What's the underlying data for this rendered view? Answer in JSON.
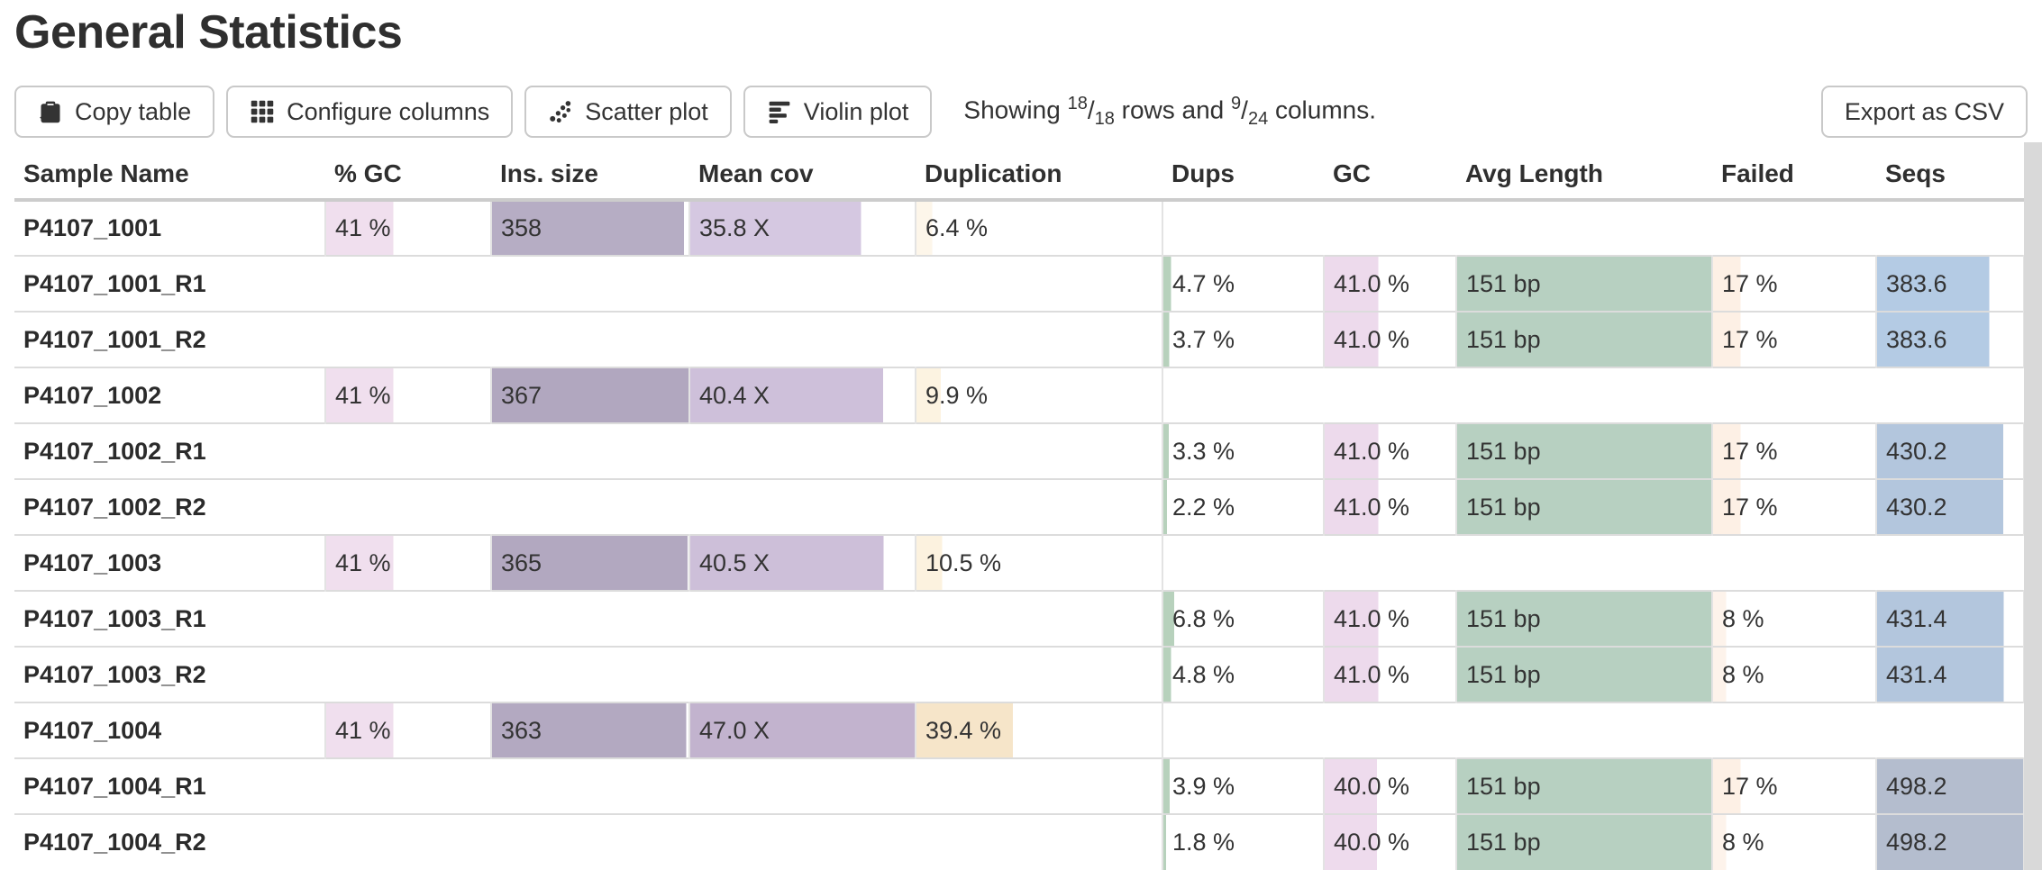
{
  "page": {
    "title": "General Statistics"
  },
  "toolbar": {
    "buttons": [
      {
        "label": "Copy table",
        "icon": "copy-icon"
      },
      {
        "label": "Configure columns",
        "icon": "grid-icon"
      },
      {
        "label": "Scatter plot",
        "icon": "scatter-icon"
      },
      {
        "label": "Violin plot",
        "icon": "violin-icon"
      }
    ],
    "showing": {
      "lead": "Showing",
      "rows_shown": "18",
      "rows_total": "18",
      "mid": "rows and",
      "cols_shown": "9",
      "cols_total": "24",
      "tail": "columns."
    },
    "export_label": "Export as CSV"
  },
  "colors": {
    "bar_gc_left": "#f0dfee",
    "bar_ins_size": "#b3a9c1",
    "bar_mean_cov": "#cfc0da",
    "bar_duplication": "#f6e5c9",
    "bar_dups": "#b7d1bc",
    "bar_gc_right": "#eddaec",
    "bar_avg_length": "#b7d0c1",
    "bar_failed": "#fdf0e5",
    "bar_seqs": "#b4cbe4",
    "row_border": "#dcdcdc",
    "header_border": "#cccccc",
    "scrollbar": "#d9d9d9"
  },
  "table": {
    "columns": [
      {
        "key": "sample",
        "label": "Sample Name"
      },
      {
        "key": "gc_pct",
        "label": "% GC"
      },
      {
        "key": "ins_size",
        "label": "Ins. size"
      },
      {
        "key": "mean_cov",
        "label": "Mean cov"
      },
      {
        "key": "duplication",
        "label": "Duplication"
      },
      {
        "key": "dups",
        "label": "Dups"
      },
      {
        "key": "gc",
        "label": "GC"
      },
      {
        "key": "avg_length",
        "label": "Avg Length"
      },
      {
        "key": "failed",
        "label": "Failed"
      },
      {
        "key": "seqs",
        "label": "Seqs"
      }
    ],
    "rows": [
      {
        "sample": "P4107_1001",
        "cells": [
          {
            "text": "41 %",
            "frac": 0.41,
            "color": "#f0dfee"
          },
          {
            "text": "358",
            "frac": 0.976,
            "color": "#b6adc4"
          },
          {
            "text": "35.8 X",
            "frac": 0.762,
            "color": "#d5c8e1"
          },
          {
            "text": "6.4 %",
            "frac": 0.064,
            "color": "#fdf6ea"
          },
          null,
          null,
          null,
          null,
          null
        ]
      },
      {
        "sample": "P4107_1001_R1",
        "cells": [
          null,
          null,
          null,
          null,
          {
            "text": "4.7 %",
            "frac": 0.047,
            "color": "#b7d1bc"
          },
          {
            "text": "41.0 %",
            "frac": 0.41,
            "color": "#eddaec"
          },
          {
            "text": "151 bp",
            "frac": 1.0,
            "color": "#b7d0c1"
          },
          {
            "text": "17 %",
            "frac": 0.17,
            "color": "#fdf0e5"
          },
          {
            "text": "383.6",
            "frac": 0.77,
            "color": "#b4cbe4"
          }
        ]
      },
      {
        "sample": "P4107_1001_R2",
        "cells": [
          null,
          null,
          null,
          null,
          {
            "text": "3.7 %",
            "frac": 0.037,
            "color": "#b7d1bc"
          },
          {
            "text": "41.0 %",
            "frac": 0.41,
            "color": "#eddaec"
          },
          {
            "text": "151 bp",
            "frac": 1.0,
            "color": "#b7d0c1"
          },
          {
            "text": "17 %",
            "frac": 0.17,
            "color": "#fdf0e5"
          },
          {
            "text": "383.6",
            "frac": 0.77,
            "color": "#b4cbe4"
          }
        ]
      },
      {
        "sample": "P4107_1002",
        "cells": [
          {
            "text": "41 %",
            "frac": 0.41,
            "color": "#f0dfee"
          },
          {
            "text": "367",
            "frac": 1.0,
            "color": "#b1a7bf"
          },
          {
            "text": "40.4 X",
            "frac": 0.86,
            "color": "#cec0da"
          },
          {
            "text": "9.9 %",
            "frac": 0.099,
            "color": "#fcf3e1"
          },
          null,
          null,
          null,
          null,
          null
        ]
      },
      {
        "sample": "P4107_1002_R1",
        "cells": [
          null,
          null,
          null,
          null,
          {
            "text": "3.3 %",
            "frac": 0.033,
            "color": "#b7d1bc"
          },
          {
            "text": "41.0 %",
            "frac": 0.41,
            "color": "#eddaec"
          },
          {
            "text": "151 bp",
            "frac": 1.0,
            "color": "#b7d0c1"
          },
          {
            "text": "17 %",
            "frac": 0.17,
            "color": "#fdf0e5"
          },
          {
            "text": "430.2",
            "frac": 0.863,
            "color": "#b3c6dd"
          }
        ]
      },
      {
        "sample": "P4107_1002_R2",
        "cells": [
          null,
          null,
          null,
          null,
          {
            "text": "2.2 %",
            "frac": 0.022,
            "color": "#b7d1bc"
          },
          {
            "text": "41.0 %",
            "frac": 0.41,
            "color": "#eddaec"
          },
          {
            "text": "151 bp",
            "frac": 1.0,
            "color": "#b7d0c1"
          },
          {
            "text": "17 %",
            "frac": 0.17,
            "color": "#fdf0e5"
          },
          {
            "text": "430.2",
            "frac": 0.863,
            "color": "#b3c6dd"
          }
        ]
      },
      {
        "sample": "P4107_1003",
        "cells": [
          {
            "text": "41 %",
            "frac": 0.41,
            "color": "#f0dfee"
          },
          {
            "text": "365",
            "frac": 0.995,
            "color": "#b2a8c0"
          },
          {
            "text": "40.5 X",
            "frac": 0.862,
            "color": "#cdbfd9"
          },
          {
            "text": "10.5 %",
            "frac": 0.105,
            "color": "#fcf2df"
          },
          null,
          null,
          null,
          null,
          null
        ]
      },
      {
        "sample": "P4107_1003_R1",
        "cells": [
          null,
          null,
          null,
          null,
          {
            "text": "6.8 %",
            "frac": 0.068,
            "color": "#b7d1bc"
          },
          {
            "text": "41.0 %",
            "frac": 0.41,
            "color": "#eddaec"
          },
          {
            "text": "151 bp",
            "frac": 1.0,
            "color": "#b7d0c1"
          },
          {
            "text": "8 %",
            "frac": 0.08,
            "color": "#fdf3eb"
          },
          {
            "text": "431.4",
            "frac": 0.866,
            "color": "#b3c6dd"
          }
        ]
      },
      {
        "sample": "P4107_1003_R2",
        "cells": [
          null,
          null,
          null,
          null,
          {
            "text": "4.8 %",
            "frac": 0.048,
            "color": "#b7d1bc"
          },
          {
            "text": "41.0 %",
            "frac": 0.41,
            "color": "#eddaec"
          },
          {
            "text": "151 bp",
            "frac": 1.0,
            "color": "#b7d0c1"
          },
          {
            "text": "8 %",
            "frac": 0.08,
            "color": "#fdf3eb"
          },
          {
            "text": "431.4",
            "frac": 0.866,
            "color": "#b3c6dd"
          }
        ]
      },
      {
        "sample": "P4107_1004",
        "cells": [
          {
            "text": "41 %",
            "frac": 0.41,
            "color": "#f0dfee"
          },
          {
            "text": "363",
            "frac": 0.989,
            "color": "#b3a9c1"
          },
          {
            "text": "47.0 X",
            "frac": 1.0,
            "color": "#c2b3ce"
          },
          {
            "text": "39.4 %",
            "frac": 0.394,
            "color": "#f6e5c9"
          },
          null,
          null,
          null,
          null,
          null
        ]
      },
      {
        "sample": "P4107_1004_R1",
        "cells": [
          null,
          null,
          null,
          null,
          {
            "text": "3.9 %",
            "frac": 0.039,
            "color": "#b7d1bc"
          },
          {
            "text": "40.0 %",
            "frac": 0.4,
            "color": "#eedbed"
          },
          {
            "text": "151 bp",
            "frac": 1.0,
            "color": "#b7d0c1"
          },
          {
            "text": "17 %",
            "frac": 0.17,
            "color": "#fdf0e5"
          },
          {
            "text": "498.2",
            "frac": 1.0,
            "color": "#b4bdce"
          }
        ]
      },
      {
        "sample": "P4107_1004_R2",
        "cells": [
          null,
          null,
          null,
          null,
          {
            "text": "1.8 %",
            "frac": 0.018,
            "color": "#b7d1bc"
          },
          {
            "text": "40.0 %",
            "frac": 0.4,
            "color": "#eedbed"
          },
          {
            "text": "151 bp",
            "frac": 1.0,
            "color": "#b7d0c1"
          },
          {
            "text": "8 %",
            "frac": 0.08,
            "color": "#fdf3eb"
          },
          {
            "text": "498.2",
            "frac": 1.0,
            "color": "#b4bdce"
          }
        ]
      }
    ]
  }
}
